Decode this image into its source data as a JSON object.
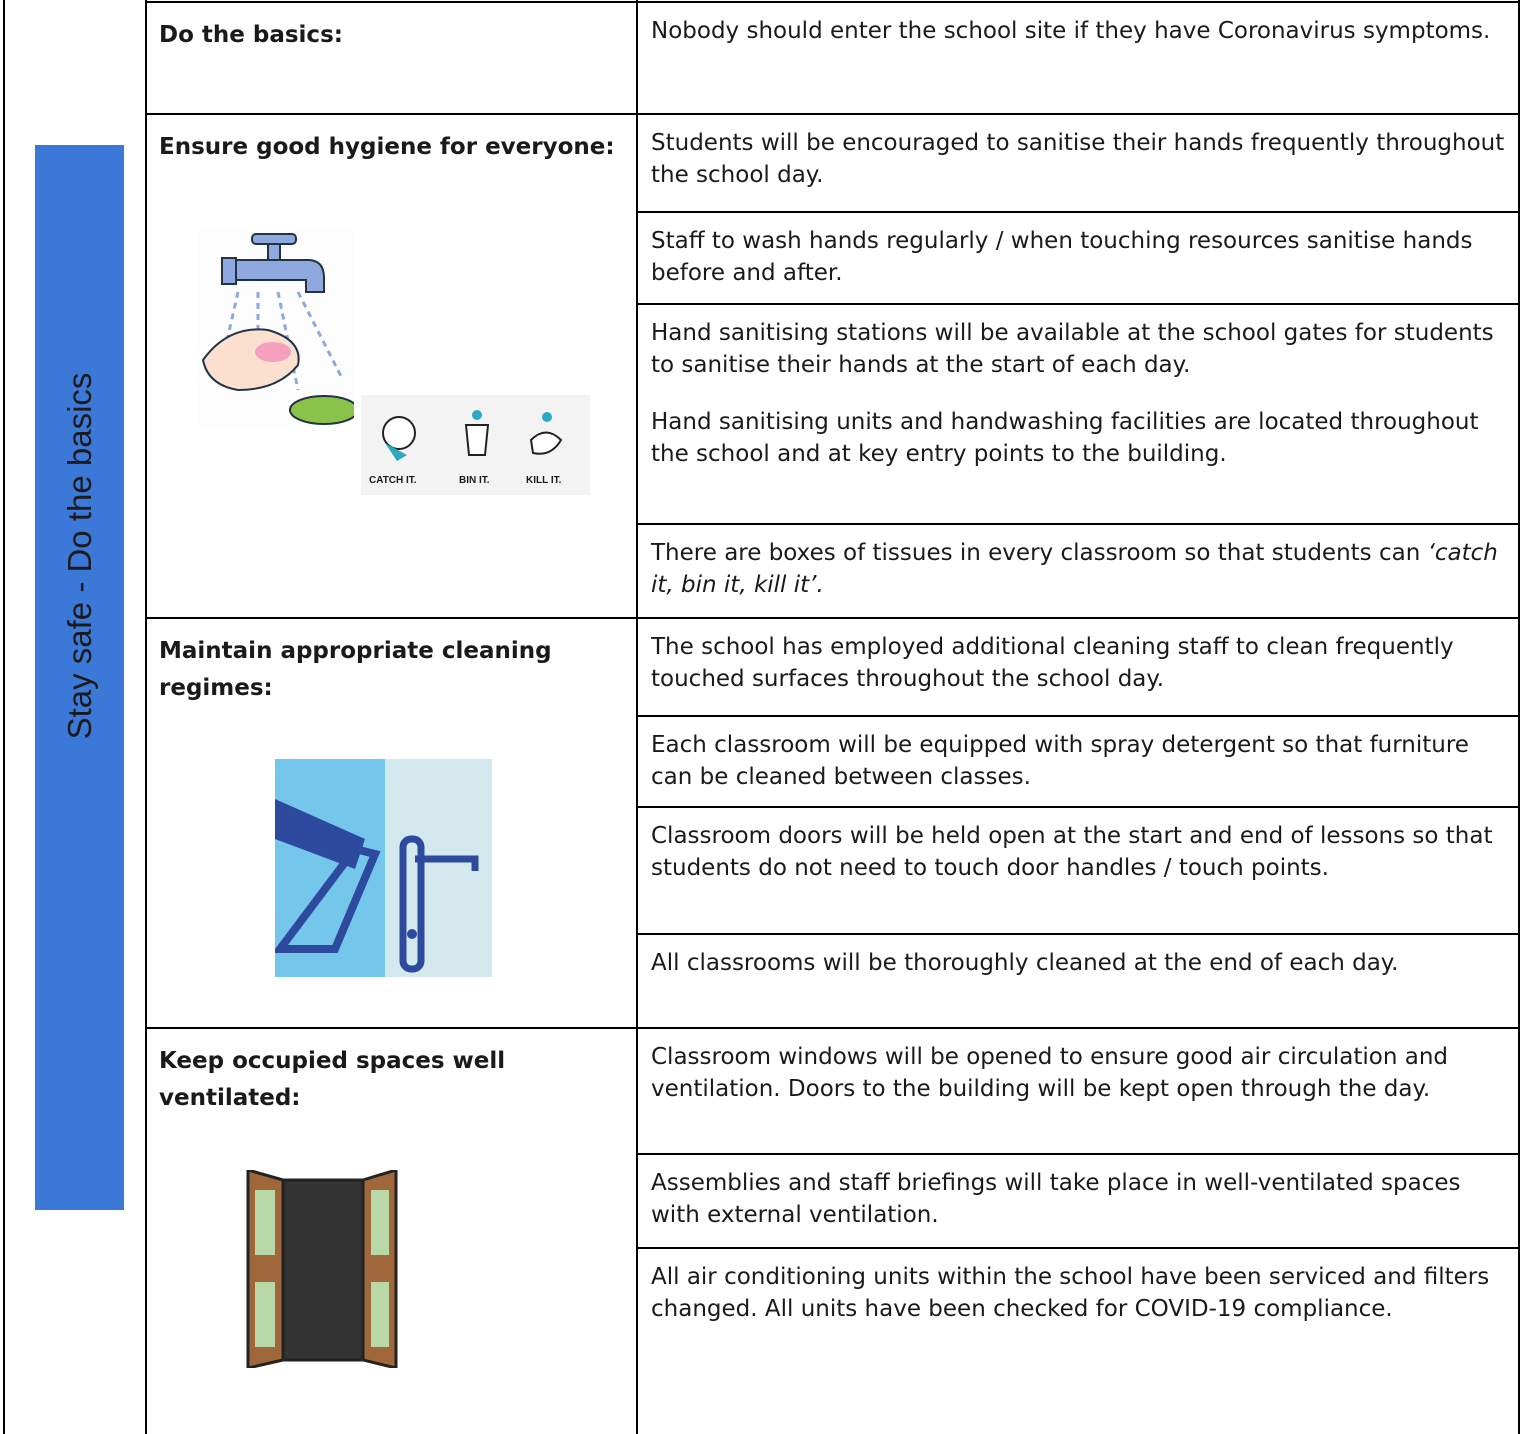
{
  "sidebar": "Stay safe - Do the basics",
  "sections": [
    {
      "heading": "Do the basics:",
      "items": [
        [
          "Nobody should enter the school site if they have Coronavirus symptoms."
        ]
      ]
    },
    {
      "heading": "Ensure good hygiene for everyone:",
      "icon_labels": [
        "CATCH IT.",
        "BIN IT.",
        "KILL IT."
      ],
      "items": [
        [
          "Students will be encouraged to sanitise their hands frequently throughout the school day."
        ],
        [
          "Staff to wash hands regularly / when touching resources sanitise hands before and after."
        ],
        [
          "Hand sanitising stations will be available at the school gates for students to sanitise their hands at the start of each day.",
          "Hand sanitising units and handwashing facilities are located throughout the school and at key entry points to the building."
        ],
        [
          {
            "text": "There are boxes of tissues in every classroom so that students can ",
            "emphasis": "‘catch it, bin it, kill it’."
          }
        ]
      ]
    },
    {
      "heading": "Maintain appropriate cleaning regimes:",
      "items": [
        [
          "The school has employed additional cleaning staff to clean frequently touched surfaces throughout the school day."
        ],
        [
          "Each classroom will be equipped with spray detergent so that furniture can be cleaned between classes."
        ],
        [
          "Classroom doors will be held open at the start and end of lessons so that students do not need to touch door handles / touch points."
        ],
        [
          "All classrooms will be thoroughly cleaned at the end of each day."
        ]
      ]
    },
    {
      "heading": "Keep occupied spaces well ventilated:",
      "items": [
        [
          "Classroom windows will be opened to ensure good air circulation and ventilation.  Doors to the building will be kept open through the day."
        ],
        [
          "Assemblies and staff briefings will take place in well-ventilated spaces with external ventilation."
        ],
        [
          "All air conditioning units within the school have been serviced and filters changed.  All units have been checked for COVID-19 compliance."
        ]
      ]
    }
  ]
}
